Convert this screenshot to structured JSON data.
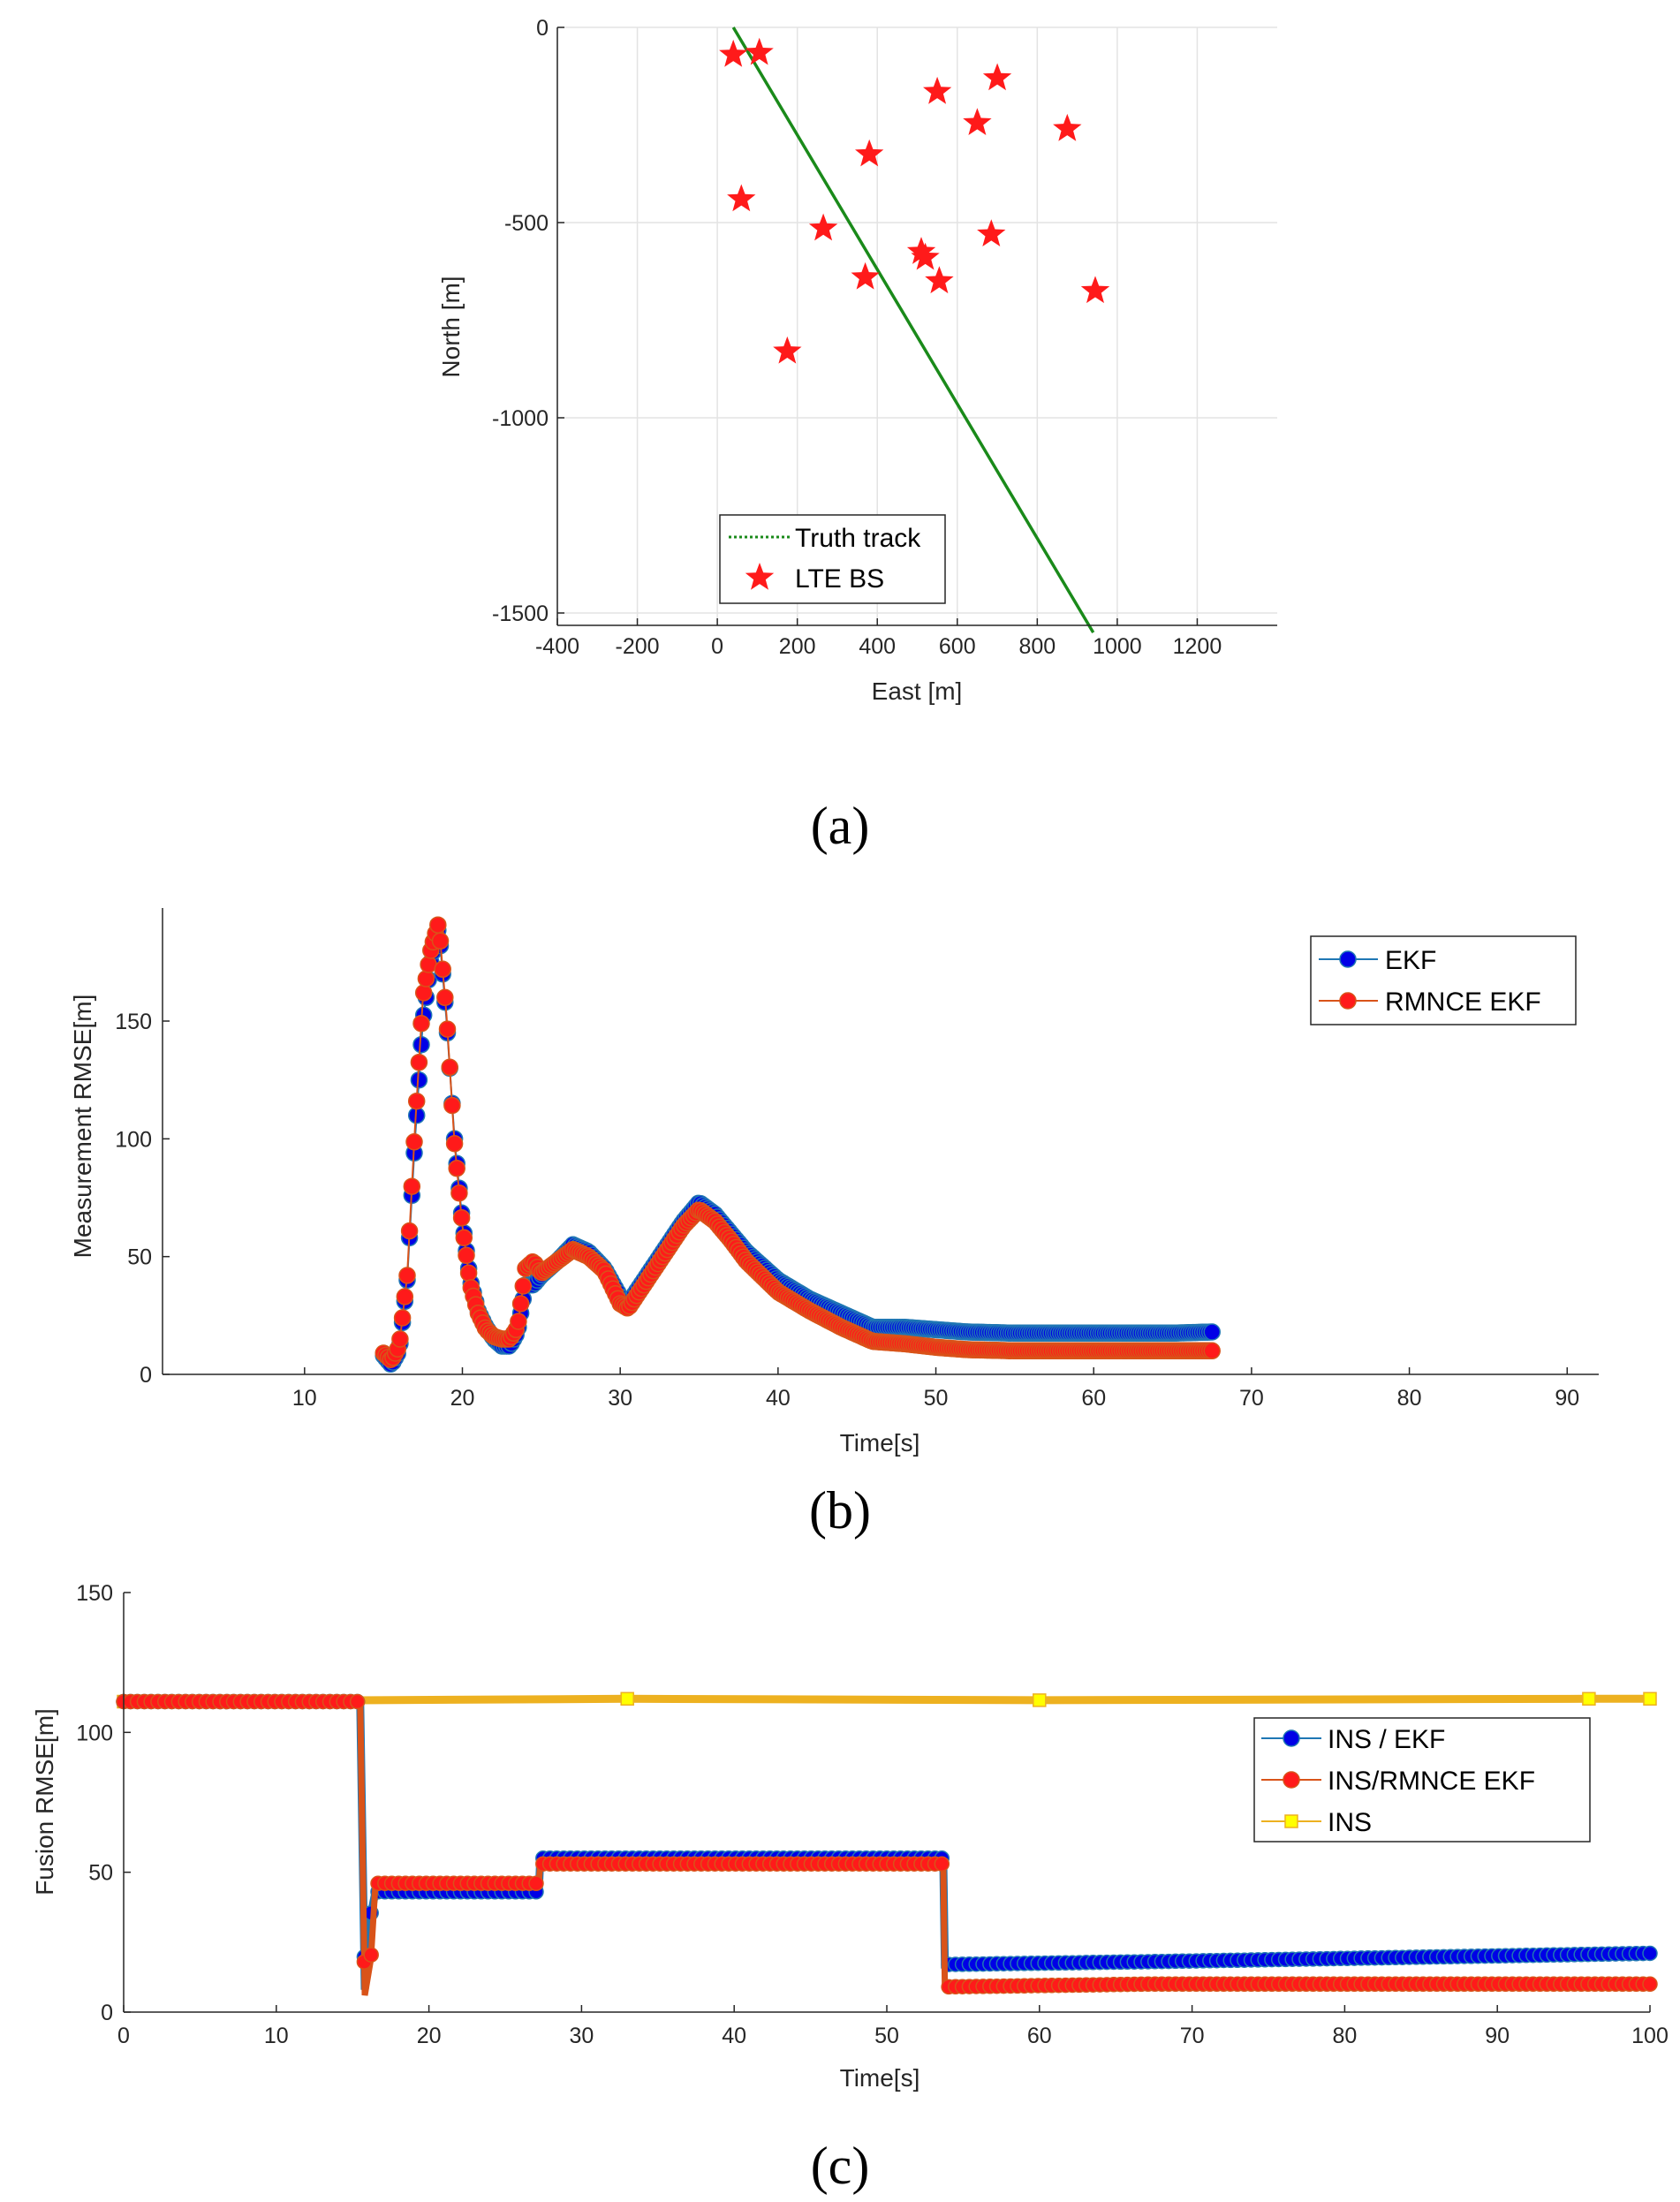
{
  "chart_data": [
    {
      "type": "scatter",
      "caption": "(a)",
      "xlabel": "East [m]",
      "ylabel": "North [m]",
      "xlim": [
        -400,
        1400
      ],
      "ylim": [
        -1550,
        0
      ],
      "xticks": [
        -400,
        -200,
        0,
        200,
        400,
        600,
        800,
        1000,
        1200
      ],
      "yticks": [
        0,
        -500,
        -1000,
        -1500
      ],
      "grid": true,
      "legend_position": "bottom-left",
      "series": [
        {
          "name": "Truth track",
          "kind": "line",
          "color": "#1a8a1a",
          "x": [
            40,
            940
          ],
          "y": [
            0,
            -1550
          ]
        },
        {
          "name": "LTE BS",
          "kind": "marker",
          "marker": "star",
          "color": "#ff1a1a",
          "x": [
            40,
            105,
            550,
            700,
            650,
            875,
            380,
            60,
            265,
            510,
            520,
            685,
            370,
            555,
            945,
            175
          ],
          "y": [
            -70,
            -65,
            -165,
            -130,
            -245,
            -260,
            -325,
            -440,
            -515,
            -575,
            -590,
            -530,
            -640,
            -650,
            -675,
            -830
          ]
        }
      ]
    },
    {
      "type": "line",
      "caption": "(b)",
      "xlabel": "Time[s]",
      "ylabel": "Measurement RMSE[m]",
      "xlim": [
        1,
        92
      ],
      "ylim": [
        0,
        198
      ],
      "xticks": [
        10,
        20,
        30,
        40,
        50,
        60,
        70,
        80,
        90
      ],
      "yticks": [
        0,
        50,
        100,
        150
      ],
      "grid": false,
      "legend_position": "top-right",
      "series": [
        {
          "name": "EKF",
          "color": "#0000e6",
          "line_color": "#1f77b4",
          "x": [
            15,
            15.5,
            16,
            16.5,
            17,
            17.5,
            18,
            18.5,
            19,
            19.5,
            20,
            20.5,
            21,
            21.5,
            22,
            22.5,
            23,
            23.5,
            24,
            24.5,
            25,
            26,
            27,
            28,
            29,
            30,
            30.5,
            31,
            32,
            33,
            34,
            35,
            36,
            37,
            38,
            40,
            42,
            44,
            46,
            48,
            50,
            52,
            55,
            60,
            65,
            67.5
          ],
          "y": [
            8,
            4,
            10,
            40,
            100,
            150,
            175,
            190,
            150,
            100,
            65,
            40,
            27,
            20,
            15,
            12,
            12,
            18,
            38,
            38,
            42,
            48,
            55,
            52,
            45,
            33,
            30,
            35,
            45,
            55,
            65,
            73,
            68,
            60,
            52,
            40,
            32,
            26,
            20,
            20,
            19,
            18,
            17.5,
            17.5,
            17.5,
            18
          ]
        },
        {
          "name": "RMNCE EKF",
          "color": "#ff1a1a",
          "line_color": "#d95319",
          "x": [
            15,
            15.5,
            16,
            16.5,
            17,
            17.5,
            18,
            18.5,
            19,
            19.5,
            20,
            20.5,
            21,
            21.5,
            22,
            22.5,
            23,
            23.5,
            24,
            24.5,
            25,
            26,
            27,
            28,
            29,
            30,
            30.5,
            31,
            32,
            33,
            34,
            35,
            36,
            37,
            38,
            40,
            42,
            44,
            46,
            48,
            50,
            52,
            55,
            60,
            65,
            67.5
          ],
          "y": [
            9,
            6,
            12,
            42,
            105,
            160,
            180,
            192,
            152,
            98,
            63,
            38,
            26,
            19,
            16,
            15,
            15,
            20,
            45,
            48,
            43,
            48,
            53,
            50,
            44,
            30,
            28,
            33,
            43,
            53,
            63,
            70,
            65,
            57,
            48,
            35,
            27,
            20,
            14,
            13,
            11.5,
            10.5,
            10,
            10,
            10,
            10
          ]
        }
      ]
    },
    {
      "type": "line",
      "caption": "(c)",
      "xlabel": "Time[s]",
      "ylabel": "Fusion RMSE[m]",
      "xlim": [
        0,
        100
      ],
      "ylim": [
        0,
        150
      ],
      "xticks": [
        0,
        10,
        20,
        30,
        40,
        50,
        60,
        70,
        80,
        90,
        100
      ],
      "yticks": [
        0,
        50,
        100,
        150
      ],
      "grid": false,
      "legend_position": "right",
      "series": [
        {
          "name": "INS / EKF",
          "color": "#0000e6",
          "line_color": "#1f77b4",
          "x": [
            0,
            15.5,
            15.8,
            16.2,
            16.5,
            27.2,
            27.3,
            53.7,
            53.8,
            67,
            100
          ],
          "y": [
            111,
            111,
            8,
            35,
            43,
            43,
            55,
            55,
            17,
            18,
            21
          ]
        },
        {
          "name": "INS/RMNCE EKF",
          "color": "#ff1a1a",
          "line_color": "#d95319",
          "x": [
            0,
            15.5,
            15.8,
            16.2,
            16.5,
            27.2,
            27.3,
            53.7,
            53.8,
            67,
            100
          ],
          "y": [
            111,
            111,
            6,
            19,
            46,
            46,
            53,
            53,
            9,
            10,
            10
          ]
        },
        {
          "name": "INS",
          "marker": "square",
          "color": "#ffff00",
          "line_color": "#edb120",
          "x": [
            0,
            33,
            60,
            96,
            100
          ],
          "y": [
            111,
            112,
            111.5,
            112,
            112
          ]
        }
      ]
    }
  ]
}
